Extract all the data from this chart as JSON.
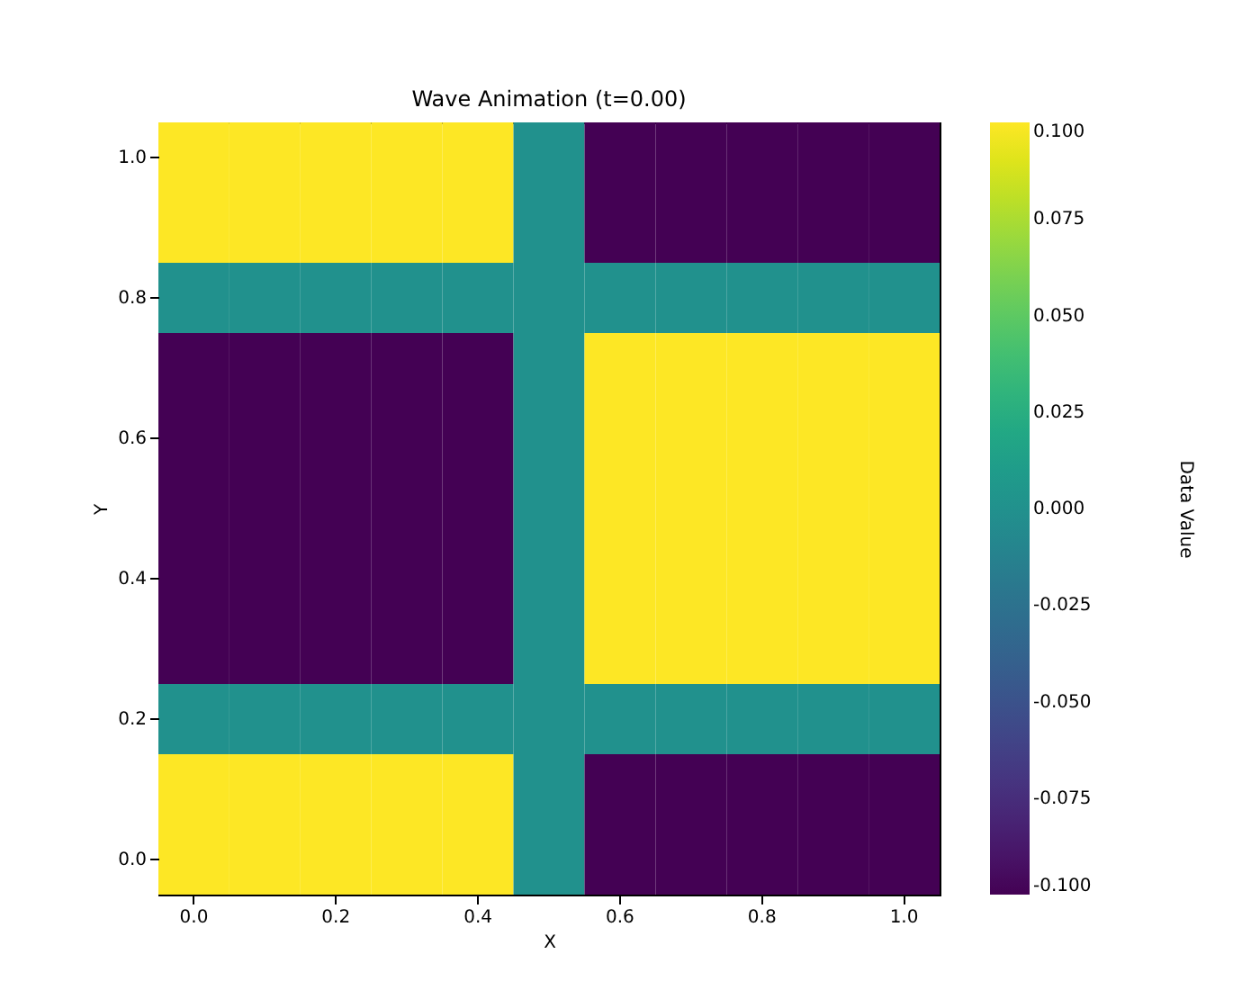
{
  "chart_data": {
    "type": "heatmap",
    "title": "Wave Animation (t=0.00)",
    "xlabel": "X",
    "ylabel": "Y",
    "clabel": "Data Value",
    "categories": [
      "0.0",
      null,
      "0.2",
      null,
      "0.4",
      null,
      "0.6",
      null,
      "0.8",
      null,
      "1.0"
    ],
    "y_categories": [
      "1.0",
      null,
      "0.8",
      null,
      "0.6",
      null,
      "0.4",
      null,
      "0.2",
      null,
      "0.0"
    ],
    "cells": [
      [
        0.1,
        0.1,
        0.1,
        0.1,
        0.1,
        0,
        -0.1,
        -0.1,
        -0.1,
        -0.1,
        -0.1
      ],
      [
        0.1,
        0.1,
        0.1,
        0.1,
        0.1,
        0,
        -0.1,
        -0.1,
        -0.1,
        -0.1,
        -0.1
      ],
      [
        0,
        0,
        0,
        0,
        0,
        0,
        0,
        0,
        0,
        0,
        0
      ],
      [
        -0.1,
        -0.1,
        -0.1,
        -0.1,
        -0.1,
        0,
        0.1,
        0.1,
        0.1,
        0.1,
        0.1
      ],
      [
        -0.1,
        -0.1,
        -0.1,
        -0.1,
        -0.1,
        0,
        0.1,
        0.1,
        0.1,
        0.1,
        0.1
      ],
      [
        -0.1,
        -0.1,
        -0.1,
        -0.1,
        -0.1,
        0,
        0.1,
        0.1,
        0.1,
        0.1,
        0.1
      ],
      [
        -0.1,
        -0.1,
        -0.1,
        -0.1,
        -0.1,
        0,
        0.1,
        0.1,
        0.1,
        0.1,
        0.1
      ],
      [
        -0.1,
        -0.1,
        -0.1,
        -0.1,
        -0.1,
        0,
        0.1,
        0.1,
        0.1,
        0.1,
        0.1
      ],
      [
        0,
        0,
        0,
        0,
        0,
        0,
        0,
        0,
        0,
        0,
        0
      ],
      [
        0.1,
        0.1,
        0.1,
        0.1,
        0.1,
        0,
        -0.1,
        -0.1,
        -0.1,
        -0.1,
        -0.1
      ],
      [
        0.1,
        0.1,
        0.1,
        0.1,
        0.1,
        0,
        -0.1,
        -0.1,
        -0.1,
        -0.1,
        -0.1
      ]
    ],
    "clim": [
      -0.1,
      0.1
    ],
    "cticks": [
      {
        "value": -0.1,
        "label": "-0.100"
      },
      {
        "value": -0.075,
        "label": "-0.075"
      },
      {
        "value": -0.05,
        "label": "-0.050"
      },
      {
        "value": -0.025,
        "label": "-0.025"
      },
      {
        "value": 0,
        "label": "0.000"
      },
      {
        "value": 0.025,
        "label": "0.025"
      },
      {
        "value": 0.05,
        "label": "0.050"
      },
      {
        "value": 0.075,
        "label": "0.075"
      },
      {
        "value": 0.1,
        "label": "0.100"
      }
    ],
    "grid": false
  }
}
